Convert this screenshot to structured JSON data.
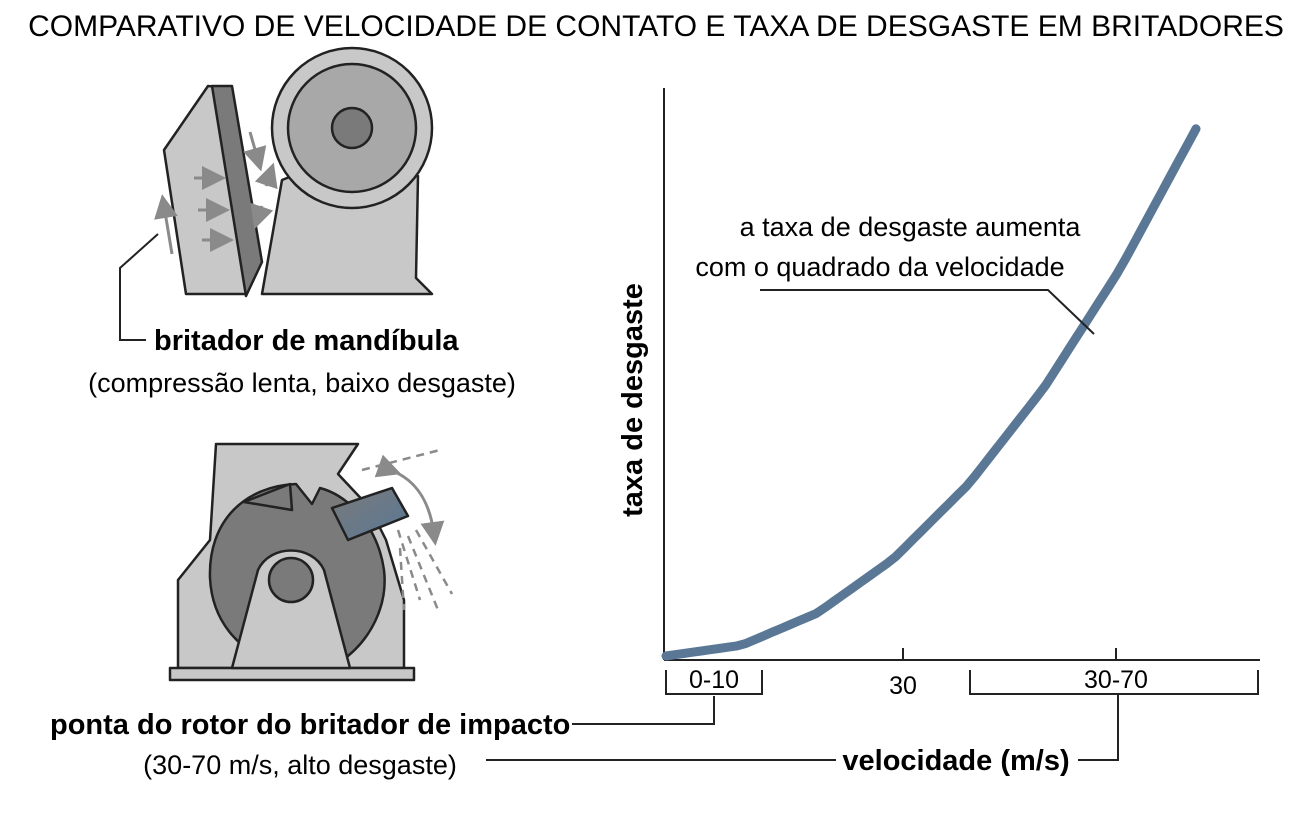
{
  "title": "COMPARATIVO DE VELOCIDADE DE CONTATO E TAXA DE DESGASTE EM BRITADORES",
  "jaw_crusher": {
    "name": "britador de mandíbula",
    "detail": "(compressão lenta, baixo desgaste)"
  },
  "impact_crusher": {
    "name": "ponta do rotor do britador de impacto",
    "detail": "(30-70 m/s, alto desgaste)"
  },
  "chart_data": {
    "type": "line",
    "title": "",
    "xlabel": "velocidade (m/s)",
    "ylabel": "taxa de desgaste",
    "x_ticks": [
      "0-10",
      "30",
      "30-70"
    ],
    "series": [
      {
        "x": [
          0,
          10,
          20,
          30,
          40,
          50,
          60,
          70
        ],
        "values": [
          0,
          2,
          8,
          18,
          32,
          50,
          72,
          98
        ],
        "color": "#5a7896"
      }
    ],
    "annotation": {
      "line1": "a taxa de desgaste aumenta",
      "line2": "com o quadrado da velocidade"
    },
    "xlim": [
      0,
      70
    ],
    "ylim": [
      0,
      100
    ],
    "grid": false
  },
  "colors": {
    "curve": "#5a7896",
    "machine_light": "#c8c8c8",
    "machine_dark": "#7a7a7a",
    "arrow": "#8a8a8a",
    "outline": "#222222"
  }
}
